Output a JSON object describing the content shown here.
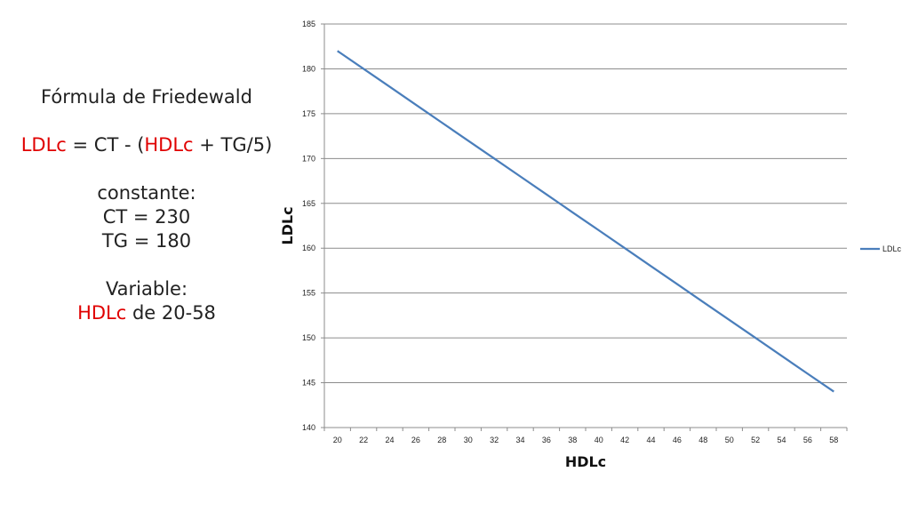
{
  "panel": {
    "title": "Fórmula de Friedewald",
    "formula": {
      "lhs": "LDLc",
      "eq1": " = CT - (",
      "hdl": "HDLc",
      "eq2": " + TG/5)"
    },
    "constant_label": "constante:",
    "ct": "CT = 230",
    "tg": "TG = 180",
    "variable_label": "Variable:",
    "variable": {
      "name": "HDLc",
      "range": " de 20-58"
    }
  },
  "chart_data": {
    "type": "line",
    "title": "",
    "xlabel": "HDLc",
    "ylabel": "LDLc",
    "x_ticks": [
      "20",
      "22",
      "24",
      "26",
      "28",
      "30",
      "32",
      "34",
      "36",
      "38",
      "40",
      "42",
      "44",
      "46",
      "48",
      "50",
      "52",
      "54",
      "56",
      "58"
    ],
    "y_ticks": [
      "140",
      "145",
      "150",
      "155",
      "160",
      "165",
      "170",
      "175",
      "180",
      "185"
    ],
    "xlim": [
      20,
      58
    ],
    "ylim": [
      140,
      185
    ],
    "grid": "horizontal",
    "legend": "right",
    "series": [
      {
        "name": "LDLc",
        "color": "#4a7ebb",
        "x": [
          20,
          22,
          24,
          26,
          28,
          30,
          32,
          34,
          36,
          38,
          40,
          42,
          44,
          46,
          48,
          50,
          52,
          54,
          56,
          58
        ],
        "y": [
          182,
          180,
          178,
          176,
          174,
          172,
          170,
          168,
          166,
          164,
          162,
          160,
          158,
          156,
          154,
          152,
          150,
          148,
          146,
          144
        ]
      }
    ]
  }
}
